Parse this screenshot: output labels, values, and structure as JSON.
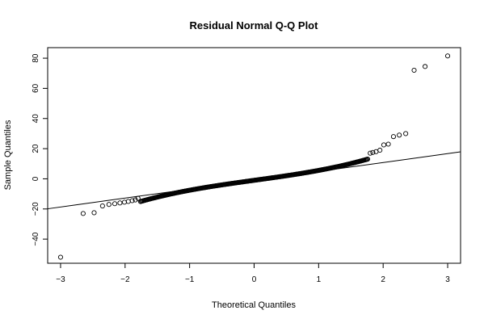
{
  "chart_data": {
    "type": "scatter",
    "title": "Residual Normal Q-Q Plot",
    "xlabel": "Theoretical Quantiles",
    "ylabel": "Sample Quantiles",
    "xlim": [
      -3.2,
      3.2
    ],
    "ylim": [
      -56,
      87
    ],
    "x_ticks": [
      -3,
      -2,
      -1,
      0,
      1,
      2,
      3
    ],
    "x_tick_labels": [
      "−3",
      "−2",
      "−1",
      "0",
      "1",
      "2",
      "3"
    ],
    "y_ticks": [
      -40,
      -20,
      0,
      20,
      40,
      60,
      80
    ],
    "y_tick_labels": [
      "−40",
      "−20",
      "0",
      "20",
      "40",
      "60",
      "80"
    ],
    "grid": false,
    "reference_line": {
      "intercept": -1.0,
      "slope": 5.9
    },
    "points": {
      "tail_low": [
        {
          "x": -3.0,
          "y": -52
        },
        {
          "x": -2.65,
          "y": -23
        },
        {
          "x": -2.48,
          "y": -22.5
        },
        {
          "x": -2.35,
          "y": -18
        },
        {
          "x": -2.25,
          "y": -17
        },
        {
          "x": -2.16,
          "y": -16.5
        },
        {
          "x": -2.08,
          "y": -16
        },
        {
          "x": -2.01,
          "y": -15.5
        },
        {
          "x": -1.95,
          "y": -15
        },
        {
          "x": -1.89,
          "y": -14.5
        },
        {
          "x": -1.84,
          "y": -14
        },
        {
          "x": -1.8,
          "y": -13
        }
      ],
      "body": {
        "x_start": -1.76,
        "x_end": 1.76,
        "count": 260,
        "slope": 5.9,
        "intercept": -1.0,
        "curvature": 1.35
      },
      "tail_high": [
        {
          "x": 1.8,
          "y": 17
        },
        {
          "x": 1.84,
          "y": 17.5
        },
        {
          "x": 1.89,
          "y": 18
        },
        {
          "x": 1.95,
          "y": 19
        },
        {
          "x": 2.01,
          "y": 22.5
        },
        {
          "x": 2.08,
          "y": 23
        },
        {
          "x": 2.16,
          "y": 28
        },
        {
          "x": 2.25,
          "y": 29
        },
        {
          "x": 2.35,
          "y": 30
        },
        {
          "x": 2.48,
          "y": 72
        },
        {
          "x": 2.65,
          "y": 74.5
        },
        {
          "x": 3.0,
          "y": 81.5
        }
      ]
    }
  }
}
